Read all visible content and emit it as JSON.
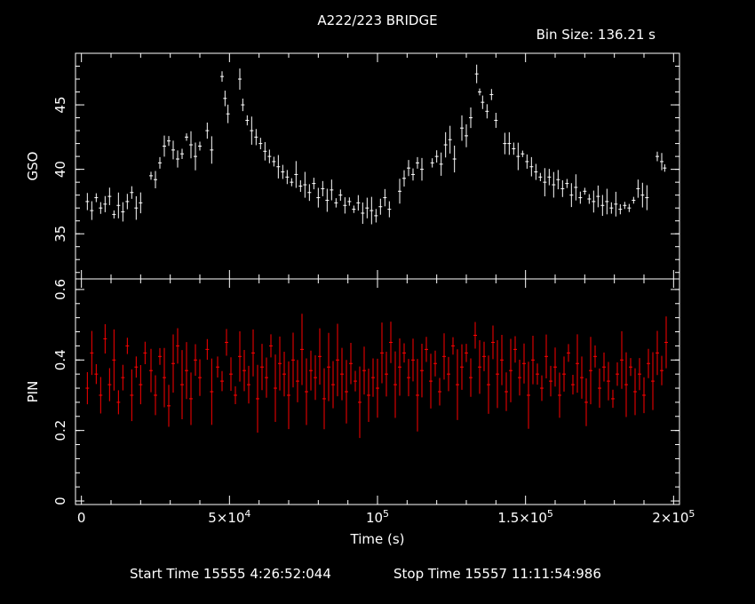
{
  "chart_data": {
    "type": "scatter",
    "title": "A222/223 BRIDGE",
    "bin_size_label": "Bin Size: 136.21 s",
    "xlabel": "Time (s)",
    "xlim": [
      -2000,
      202000
    ],
    "x_ticks": [
      {
        "value": 0,
        "label": "0",
        "sup": ""
      },
      {
        "value": 50000,
        "label": "5×10",
        "sup": "4"
      },
      {
        "value": 100000,
        "label": "10",
        "sup": "5"
      },
      {
        "value": 150000,
        "label": "1.5×10",
        "sup": "5"
      },
      {
        "value": 200000,
        "label": "2×10",
        "sup": "5"
      }
    ],
    "panels": [
      {
        "name": "GSO",
        "ylabel": "GSO",
        "ylim": [
          31.5,
          49
        ],
        "y_ticks": [
          35,
          40,
          45
        ],
        "color": "#ffffff",
        "series_points": [
          [
            2000,
            37.5
          ],
          [
            3500,
            36.8
          ],
          [
            5000,
            37.8
          ],
          [
            6500,
            37.0
          ],
          [
            8000,
            37.3
          ],
          [
            9500,
            37.9
          ],
          [
            11000,
            36.5
          ],
          [
            12500,
            37.2
          ],
          [
            14000,
            36.7
          ],
          [
            15500,
            37.5
          ],
          [
            17000,
            38.2
          ],
          [
            18500,
            37.0
          ],
          [
            20000,
            37.4
          ],
          [
            23500,
            39.5
          ],
          [
            25000,
            39.2
          ],
          [
            26500,
            40.5
          ],
          [
            28000,
            41.8
          ],
          [
            29500,
            42.2
          ],
          [
            31000,
            41.5
          ],
          [
            32500,
            40.8
          ],
          [
            34000,
            41.2
          ],
          [
            35500,
            42.5
          ],
          [
            37000,
            41.9
          ],
          [
            38500,
            41.0
          ],
          [
            40000,
            41.8
          ],
          [
            42500,
            43.0
          ],
          [
            44000,
            41.5
          ],
          [
            47500,
            47.2
          ],
          [
            48500,
            45.5
          ],
          [
            49500,
            44.3
          ],
          [
            53500,
            47.0
          ],
          [
            54500,
            45.0
          ],
          [
            56000,
            43.8
          ],
          [
            57500,
            43.0
          ],
          [
            59000,
            42.5
          ],
          [
            60500,
            42.0
          ],
          [
            62000,
            41.4
          ],
          [
            63500,
            41.0
          ],
          [
            65000,
            40.6
          ],
          [
            66500,
            40.2
          ],
          [
            68000,
            39.8
          ],
          [
            69500,
            39.4
          ],
          [
            71000,
            39.0
          ],
          [
            72500,
            39.6
          ],
          [
            74000,
            38.7
          ],
          [
            75500,
            38.8
          ],
          [
            77000,
            38.2
          ],
          [
            78500,
            38.9
          ],
          [
            80000,
            37.8
          ],
          [
            81500,
            38.5
          ],
          [
            83000,
            37.6
          ],
          [
            84500,
            38.4
          ],
          [
            86000,
            37.4
          ],
          [
            87500,
            38.0
          ],
          [
            89000,
            37.2
          ],
          [
            90500,
            37.5
          ],
          [
            92000,
            36.9
          ],
          [
            93500,
            37.4
          ],
          [
            95000,
            36.6
          ],
          [
            96500,
            37.0
          ],
          [
            98000,
            36.8
          ],
          [
            99500,
            36.4
          ],
          [
            101000,
            37.1
          ],
          [
            102500,
            37.8
          ],
          [
            104000,
            36.9
          ],
          [
            107500,
            38.3
          ],
          [
            109000,
            39.3
          ],
          [
            110500,
            40.1
          ],
          [
            112000,
            39.6
          ],
          [
            113500,
            40.5
          ],
          [
            115000,
            40.0
          ],
          [
            118500,
            40.5
          ],
          [
            120000,
            41.0
          ],
          [
            121500,
            40.4
          ],
          [
            123000,
            41.9
          ],
          [
            124500,
            42.3
          ],
          [
            126000,
            40.8
          ],
          [
            128500,
            43.2
          ],
          [
            130000,
            42.6
          ],
          [
            131500,
            44.0
          ],
          [
            133500,
            47.4
          ],
          [
            134500,
            46.0
          ],
          [
            135500,
            45.2
          ],
          [
            137000,
            44.5
          ],
          [
            138500,
            45.8
          ],
          [
            140000,
            43.8
          ],
          [
            143000,
            42.0
          ],
          [
            144500,
            42.0
          ],
          [
            146000,
            41.6
          ],
          [
            147500,
            41.0
          ],
          [
            149000,
            41.2
          ],
          [
            150500,
            40.6
          ],
          [
            152000,
            40.2
          ],
          [
            153500,
            39.8
          ],
          [
            155000,
            39.4
          ],
          [
            156500,
            39.0
          ],
          [
            158000,
            39.4
          ],
          [
            159500,
            38.8
          ],
          [
            161000,
            39.2
          ],
          [
            162500,
            38.5
          ],
          [
            164000,
            38.9
          ],
          [
            165500,
            38.0
          ],
          [
            167000,
            38.6
          ],
          [
            168500,
            37.8
          ],
          [
            170000,
            38.3
          ],
          [
            171500,
            37.7
          ],
          [
            173000,
            37.5
          ],
          [
            174500,
            37.9
          ],
          [
            176000,
            37.2
          ],
          [
            177500,
            37.5
          ],
          [
            179000,
            37.0
          ],
          [
            180500,
            37.3
          ],
          [
            182000,
            36.9
          ],
          [
            183500,
            37.2
          ],
          [
            185000,
            37.0
          ],
          [
            186500,
            37.6
          ],
          [
            188000,
            38.5
          ],
          [
            189500,
            38.0
          ],
          [
            191000,
            37.8
          ],
          [
            194500,
            41.0
          ],
          [
            196000,
            40.6
          ],
          [
            197000,
            40.1
          ]
        ]
      },
      {
        "name": "PIN",
        "ylabel": "PIN",
        "ylim": [
          -0.01,
          0.63
        ],
        "y_ticks": [
          0,
          0.2,
          0.4,
          0.6
        ],
        "color": "#ff0000",
        "series_points": [
          [
            2000,
            0.32
          ],
          [
            3500,
            0.42
          ],
          [
            5000,
            0.36
          ],
          [
            6500,
            0.3
          ],
          [
            8000,
            0.46
          ],
          [
            9500,
            0.33
          ],
          [
            11000,
            0.4
          ],
          [
            12500,
            0.28
          ],
          [
            14000,
            0.35
          ],
          [
            15500,
            0.44
          ],
          [
            17000,
            0.3
          ],
          [
            18500,
            0.38
          ],
          [
            20000,
            0.33
          ],
          [
            21500,
            0.42
          ],
          [
            23500,
            0.37
          ],
          [
            25000,
            0.3
          ],
          [
            26500,
            0.41
          ],
          [
            28000,
            0.35
          ],
          [
            29500,
            0.27
          ],
          [
            31000,
            0.39
          ],
          [
            32500,
            0.44
          ],
          [
            34000,
            0.33
          ],
          [
            35500,
            0.37
          ],
          [
            37000,
            0.29
          ],
          [
            38500,
            0.4
          ],
          [
            40000,
            0.35
          ],
          [
            42500,
            0.43
          ],
          [
            44000,
            0.31
          ],
          [
            46000,
            0.38
          ],
          [
            47500,
            0.34
          ],
          [
            49000,
            0.45
          ],
          [
            50500,
            0.36
          ],
          [
            52000,
            0.3
          ],
          [
            53500,
            0.41
          ],
          [
            55000,
            0.37
          ],
          [
            56500,
            0.33
          ],
          [
            58000,
            0.42
          ],
          [
            59500,
            0.29
          ],
          [
            61000,
            0.38
          ],
          [
            62500,
            0.35
          ],
          [
            64000,
            0.44
          ],
          [
            65500,
            0.32
          ],
          [
            67000,
            0.39
          ],
          [
            68500,
            0.36
          ],
          [
            70000,
            0.3
          ],
          [
            71500,
            0.4
          ],
          [
            73000,
            0.34
          ],
          [
            74500,
            0.43
          ],
          [
            76000,
            0.31
          ],
          [
            77500,
            0.37
          ],
          [
            79000,
            0.35
          ],
          [
            80500,
            0.41
          ],
          [
            82000,
            0.29
          ],
          [
            83500,
            0.38
          ],
          [
            85000,
            0.33
          ],
          [
            86500,
            0.4
          ],
          [
            88000,
            0.36
          ],
          [
            89500,
            0.31
          ],
          [
            91000,
            0.39
          ],
          [
            92500,
            0.34
          ],
          [
            94000,
            0.28
          ],
          [
            95500,
            0.37
          ],
          [
            97000,
            0.3
          ],
          [
            98500,
            0.35
          ],
          [
            100000,
            0.32
          ],
          [
            101500,
            0.42
          ],
          [
            103000,
            0.36
          ],
          [
            104500,
            0.45
          ],
          [
            106000,
            0.33
          ],
          [
            107500,
            0.38
          ],
          [
            109000,
            0.42
          ],
          [
            110500,
            0.35
          ],
          [
            112000,
            0.4
          ],
          [
            113500,
            0.3
          ],
          [
            115000,
            0.37
          ],
          [
            116500,
            0.43
          ],
          [
            118000,
            0.34
          ],
          [
            119500,
            0.39
          ],
          [
            121000,
            0.31
          ],
          [
            122500,
            0.41
          ],
          [
            124000,
            0.36
          ],
          [
            125500,
            0.44
          ],
          [
            127000,
            0.33
          ],
          [
            128500,
            0.38
          ],
          [
            130000,
            0.42
          ],
          [
            131500,
            0.35
          ],
          [
            133000,
            0.47
          ],
          [
            134500,
            0.38
          ],
          [
            136000,
            0.41
          ],
          [
            137500,
            0.33
          ],
          [
            139000,
            0.45
          ],
          [
            140500,
            0.36
          ],
          [
            142000,
            0.4
          ],
          [
            143500,
            0.31
          ],
          [
            145000,
            0.37
          ],
          [
            146500,
            0.43
          ],
          [
            148000,
            0.35
          ],
          [
            149500,
            0.39
          ],
          [
            151000,
            0.3
          ],
          [
            152500,
            0.4
          ],
          [
            154000,
            0.36
          ],
          [
            155500,
            0.32
          ],
          [
            157000,
            0.41
          ],
          [
            158500,
            0.34
          ],
          [
            160000,
            0.38
          ],
          [
            161500,
            0.3
          ],
          [
            163000,
            0.36
          ],
          [
            164500,
            0.42
          ],
          [
            166000,
            0.33
          ],
          [
            167500,
            0.39
          ],
          [
            169000,
            0.35
          ],
          [
            170500,
            0.28
          ],
          [
            172000,
            0.37
          ],
          [
            173500,
            0.41
          ],
          [
            175000,
            0.32
          ],
          [
            176500,
            0.38
          ],
          [
            178000,
            0.34
          ],
          [
            179500,
            0.29
          ],
          [
            181000,
            0.36
          ],
          [
            182500,
            0.4
          ],
          [
            184000,
            0.33
          ],
          [
            185500,
            0.38
          ],
          [
            187000,
            0.31
          ],
          [
            188500,
            0.36
          ],
          [
            190000,
            0.3
          ],
          [
            191500,
            0.39
          ],
          [
            193000,
            0.34
          ],
          [
            194500,
            0.42
          ],
          [
            196000,
            0.37
          ],
          [
            197500,
            0.45
          ]
        ]
      }
    ]
  },
  "footer": {
    "start_label": "Start Time 15555  4:26:52:044",
    "stop_label": "Stop Time 15557 11:11:54:986"
  }
}
